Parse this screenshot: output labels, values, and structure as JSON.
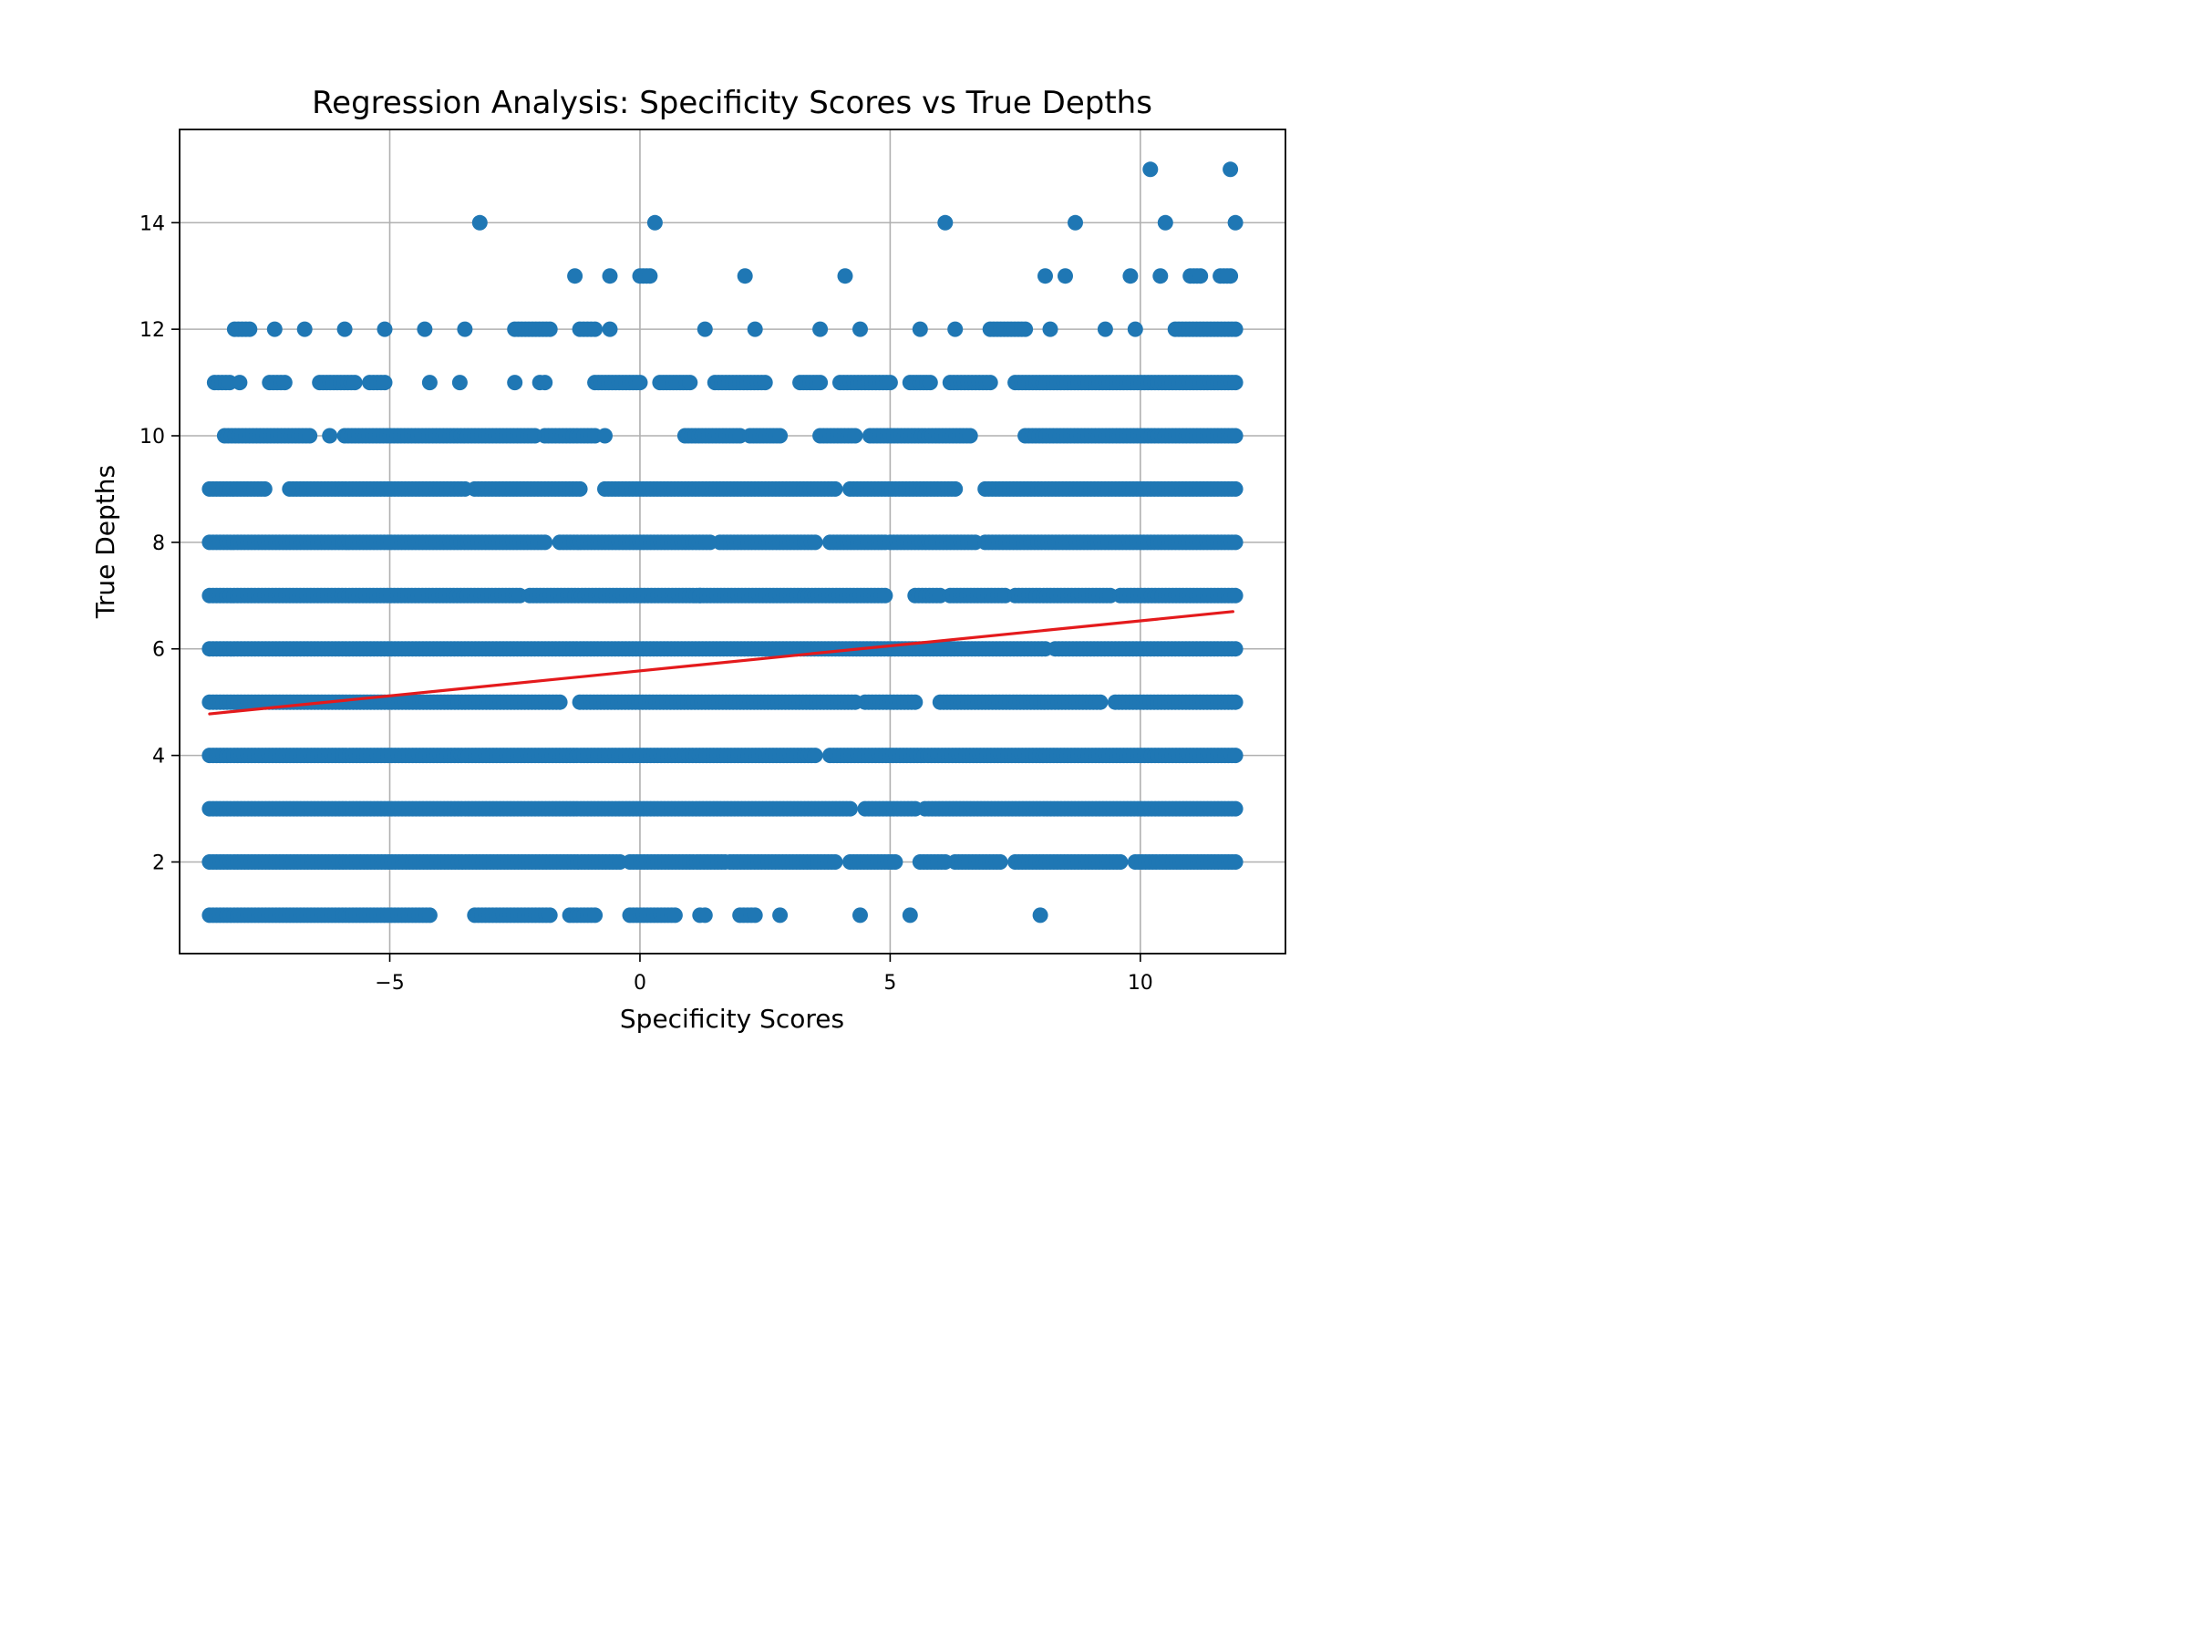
{
  "chart_data": {
    "type": "scatter",
    "title": "Regression Analysis: Specificity Scores vs True Depths",
    "xlabel": "Specificity Scores",
    "ylabel": "True Depths",
    "xlim": [
      -9.2,
      12.9
    ],
    "ylim": [
      0.28,
      15.75
    ],
    "xticks": [
      -5,
      0,
      5,
      10
    ],
    "xtick_labels": [
      "−5",
      "0",
      "5",
      "10"
    ],
    "yticks": [
      2,
      4,
      6,
      8,
      10,
      12,
      14
    ],
    "ytick_labels": [
      "2",
      "4",
      "6",
      "8",
      "10",
      "12",
      "14"
    ],
    "grid": true,
    "point_color": "#1f77b4",
    "line_color": "#e41a1c",
    "regression_line": {
      "x": [
        -8.6,
        11.85
      ],
      "y": [
        4.78,
        6.7
      ]
    },
    "rows": [
      {
        "y": 1,
        "segments": [
          [
            -8.6,
            -4.2
          ],
          [
            -3.3,
            -1.8
          ],
          [
            -1.4,
            -0.9
          ],
          [
            -0.2,
            0.7
          ],
          [
            1.2,
            1.3
          ],
          [
            2.0,
            2.3
          ],
          [
            2.8,
            2.8
          ],
          [
            4.4,
            4.4
          ],
          [
            5.4,
            5.4
          ],
          [
            8.0,
            8.0
          ]
        ]
      },
      {
        "y": 2,
        "segments": [
          [
            -8.6,
            -0.4
          ],
          [
            -0.2,
            1.7
          ],
          [
            1.8,
            3.9
          ],
          [
            4.2,
            5.1
          ],
          [
            5.6,
            6.1
          ],
          [
            6.3,
            7.2
          ],
          [
            7.5,
            9.6
          ],
          [
            9.9,
            11.9
          ]
        ]
      },
      {
        "y": 3,
        "segments": [
          [
            -8.6,
            4.2
          ],
          [
            4.5,
            5.5
          ],
          [
            5.7,
            11.9
          ]
        ]
      },
      {
        "y": 4,
        "segments": [
          [
            -8.6,
            3.5
          ],
          [
            3.8,
            11.9
          ]
        ]
      },
      {
        "y": 5,
        "segments": [
          [
            -8.6,
            -1.6
          ],
          [
            -1.2,
            4.3
          ],
          [
            4.5,
            5.5
          ],
          [
            6.0,
            9.2
          ],
          [
            9.5,
            11.9
          ]
        ]
      },
      {
        "y": 6,
        "segments": [
          [
            -8.6,
            8.1
          ],
          [
            8.3,
            11.9
          ]
        ]
      },
      {
        "y": 7,
        "segments": [
          [
            -8.6,
            -2.4
          ],
          [
            -2.2,
            1.2
          ],
          [
            1.2,
            4.9
          ],
          [
            5.5,
            6.0
          ],
          [
            6.2,
            7.3
          ],
          [
            7.5,
            9.4
          ],
          [
            9.6,
            11.9
          ]
        ]
      },
      {
        "y": 8,
        "segments": [
          [
            -8.6,
            -1.9
          ],
          [
            -1.6,
            1.4
          ],
          [
            1.6,
            3.5
          ],
          [
            3.8,
            4.9
          ],
          [
            5.0,
            6.7
          ],
          [
            6.9,
            11.9
          ]
        ]
      },
      {
        "y": 9,
        "segments": [
          [
            -8.6,
            -7.5
          ],
          [
            -7.0,
            -3.5
          ],
          [
            -3.3,
            -1.2
          ],
          [
            -0.7,
            3.9
          ],
          [
            4.2,
            6.3
          ],
          [
            6.9,
            11.9
          ]
        ]
      },
      {
        "y": 10,
        "segments": [
          [
            -8.3,
            -6.6
          ],
          [
            -6.2,
            -6.2
          ],
          [
            -5.9,
            -2.1
          ],
          [
            -1.9,
            -0.9
          ],
          [
            -0.7,
            -0.7
          ],
          [
            0.9,
            2.0
          ],
          [
            2.2,
            2.8
          ],
          [
            3.6,
            4.3
          ],
          [
            4.6,
            6.6
          ],
          [
            7.7,
            11.9
          ]
        ]
      },
      {
        "y": 11,
        "segments": [
          [
            -8.5,
            -8.2
          ],
          [
            -8.0,
            -8.0
          ],
          [
            -7.4,
            -7.1
          ],
          [
            -6.4,
            -5.7
          ],
          [
            -5.4,
            -5.1
          ],
          [
            -4.2,
            -4.2
          ],
          [
            -3.6,
            -3.6
          ],
          [
            -2.5,
            -2.5
          ],
          [
            -2.0,
            -1.9
          ],
          [
            -0.9,
            0.0
          ],
          [
            0.4,
            1.0
          ],
          [
            1.5,
            2.5
          ],
          [
            3.2,
            3.6
          ],
          [
            4.0,
            5.0
          ],
          [
            5.4,
            5.8
          ],
          [
            6.2,
            7.0
          ],
          [
            7.5,
            11.9
          ]
        ]
      },
      {
        "y": 12,
        "segments": [
          [
            -8.1,
            -7.8
          ],
          [
            -7.3,
            -7.3
          ],
          [
            -6.7,
            -6.7
          ],
          [
            -5.9,
            -5.9
          ],
          [
            -5.1,
            -5.1
          ],
          [
            -4.3,
            -4.3
          ],
          [
            -3.5,
            -3.5
          ],
          [
            -2.5,
            -1.8
          ],
          [
            -1.2,
            -0.9
          ],
          [
            -0.6,
            -0.6
          ],
          [
            1.3,
            1.3
          ],
          [
            2.3,
            2.3
          ],
          [
            3.6,
            3.6
          ],
          [
            4.4,
            4.4
          ],
          [
            5.6,
            5.6
          ],
          [
            6.3,
            6.3
          ],
          [
            7.0,
            7.7
          ],
          [
            8.2,
            8.2
          ],
          [
            9.3,
            9.3
          ],
          [
            9.9,
            9.9
          ],
          [
            10.7,
            11.9
          ]
        ]
      },
      {
        "y": 13,
        "segments": [
          [
            -1.3,
            -1.3
          ],
          [
            -0.6,
            -0.6
          ],
          [
            0.0,
            0.2
          ],
          [
            2.1,
            2.1
          ],
          [
            4.1,
            4.1
          ],
          [
            8.1,
            8.1
          ],
          [
            8.5,
            8.5
          ],
          [
            9.8,
            9.8
          ],
          [
            10.4,
            10.4
          ],
          [
            11.0,
            11.2
          ],
          [
            11.6,
            11.8
          ]
        ]
      },
      {
        "y": 14,
        "segments": [
          [
            -3.2,
            -3.2
          ],
          [
            0.3,
            0.3
          ],
          [
            6.1,
            6.1
          ],
          [
            8.7,
            8.7
          ],
          [
            10.5,
            10.5
          ],
          [
            11.9,
            11.9
          ]
        ]
      },
      {
        "y": 15,
        "segments": [
          [
            10.2,
            10.2
          ],
          [
            11.8,
            11.8
          ]
        ]
      }
    ]
  }
}
